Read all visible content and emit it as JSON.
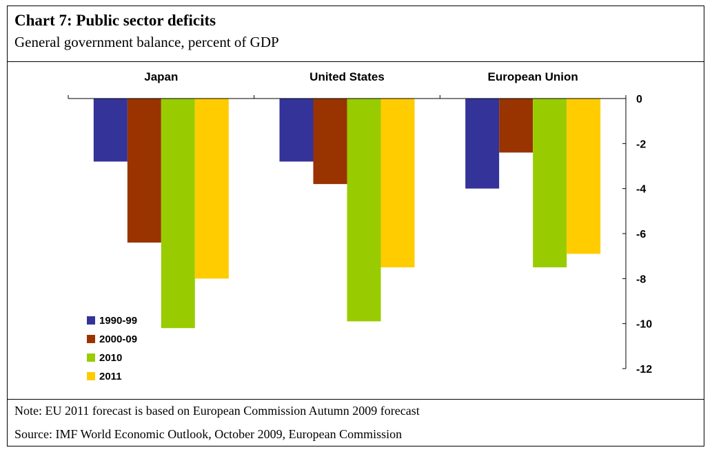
{
  "header": {
    "title": "Chart 7: Public sector deficits",
    "subtitle": "General government balance, percent of GDP"
  },
  "footer": {
    "note": "Note: EU 2011 forecast is based on European Commission Autumn 2009 forecast",
    "source": "Source: IMF World Economic Outlook, October 2009, European Commission"
  },
  "chart_data": {
    "type": "bar",
    "title": "Chart 7: Public sector deficits",
    "subtitle": "General government balance, percent of GDP",
    "categories": [
      "Japan",
      "United States",
      "European Union"
    ],
    "series": [
      {
        "name": "1990-99",
        "color": "#333399",
        "values": [
          -2.8,
          -2.8,
          -4.0
        ]
      },
      {
        "name": "2000-09",
        "color": "#993300",
        "values": [
          -6.4,
          -3.8,
          -2.4
        ]
      },
      {
        "name": "2010",
        "color": "#99cc00",
        "values": [
          -10.2,
          -9.9,
          -7.5
        ]
      },
      {
        "name": "2011",
        "color": "#ffcc00",
        "values": [
          -8.0,
          -7.5,
          -6.9
        ]
      }
    ],
    "ylim": [
      -12,
      0
    ],
    "yticks": [
      0,
      -2,
      -4,
      -6,
      -8,
      -10,
      -12
    ],
    "ytick_labels": [
      "0",
      "-2",
      "-4",
      "-6",
      "-8",
      "-10",
      "-12"
    ],
    "y_axis_side": "right",
    "category_label_position": "top",
    "legend_position": "bottom-left",
    "grid": false
  }
}
